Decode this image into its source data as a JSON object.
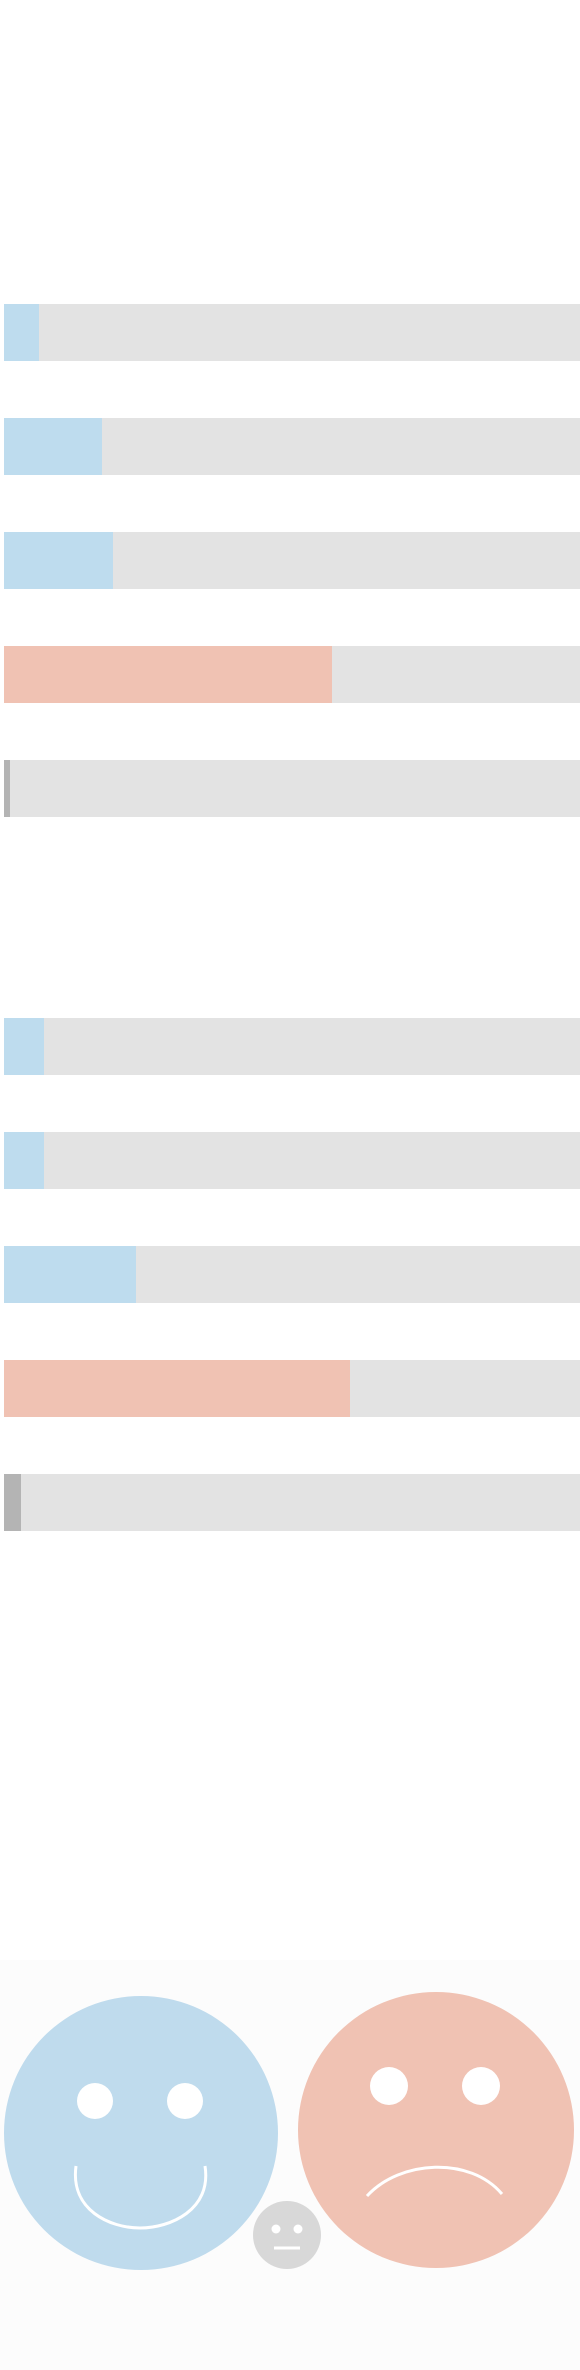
{
  "colors": {
    "track": "#e3e3e3",
    "positive": "#bedcee",
    "negative": "#f0c2b3",
    "neutral": "#b4b4b4",
    "face_positive": "#bfdbed",
    "face_negative": "#f0c2b3",
    "face_neutral": "#d8d8d8",
    "face_feature": "#ffffff"
  },
  "groups": [
    {
      "bars": [
        {
          "sentiment": "positive",
          "value": 0.06
        },
        {
          "sentiment": "positive",
          "value": 0.17
        },
        {
          "sentiment": "positive",
          "value": 0.19
        },
        {
          "sentiment": "negative",
          "value": 0.57
        },
        {
          "sentiment": "neutral",
          "value": 0.01
        }
      ]
    },
    {
      "bars": [
        {
          "sentiment": "positive",
          "value": 0.07
        },
        {
          "sentiment": "positive",
          "value": 0.07
        },
        {
          "sentiment": "positive",
          "value": 0.23
        },
        {
          "sentiment": "negative",
          "value": 0.6
        },
        {
          "sentiment": "neutral",
          "value": 0.03
        }
      ]
    }
  ],
  "faces": [
    {
      "name": "happy-face-icon",
      "mood": "happy"
    },
    {
      "name": "neutral-face-icon",
      "mood": "neutral"
    },
    {
      "name": "sad-face-icon",
      "mood": "sad"
    }
  ]
}
